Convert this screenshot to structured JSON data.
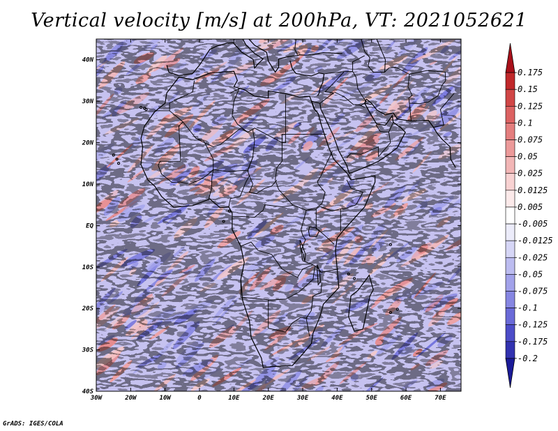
{
  "chart_data": {
    "type": "heatmap",
    "title": "Vertical velocity [m/s] at 200hPa, VT: 2021052621",
    "variable": "Vertical velocity",
    "units": "m/s",
    "level": "200hPa",
    "valid_time": "2021052621",
    "x_axis": {
      "range": [
        -30,
        76
      ],
      "ticks": [
        -30,
        -20,
        -10,
        0,
        10,
        20,
        30,
        40,
        50,
        60,
        70
      ],
      "tick_labels": [
        "30W",
        "20W",
        "10W",
        "0",
        "10E",
        "20E",
        "30E",
        "40E",
        "50E",
        "60E",
        "70E"
      ]
    },
    "y_axis": {
      "range": [
        -40,
        45
      ],
      "ticks": [
        -40,
        -30,
        -20,
        -10,
        0,
        10,
        20,
        30,
        40
      ],
      "tick_labels": [
        "40S",
        "30S",
        "20S",
        "10S",
        "EQ",
        "10N",
        "20N",
        "30N",
        "40N"
      ]
    },
    "colorbar": {
      "labels": [
        "0.175",
        "0.15",
        "0.125",
        "0.1",
        "0.075",
        "0.05",
        "0.025",
        "0.0125",
        "0.005",
        "-0.005",
        "-0.0125",
        "-0.025",
        "-0.05",
        "-0.075",
        "-0.1",
        "-0.125",
        "-0.175",
        "-0.2"
      ],
      "colors": [
        "#a8101a",
        "#c0282a",
        "#d04646",
        "#dc6262",
        "#e47e7e",
        "#ec9a9a",
        "#f2b6b6",
        "#f8d2d2",
        "#fceaea",
        "#ffffff",
        "#ececfa",
        "#d6d6f6",
        "#bcbcf0",
        "#a2a2ea",
        "#8686e2",
        "#6a6ad8",
        "#4c4cc8",
        "#3232b0",
        "#1a1a98"
      ]
    },
    "grid": false
  },
  "footer": {
    "credit": "GrADS: IGES/COLA"
  }
}
